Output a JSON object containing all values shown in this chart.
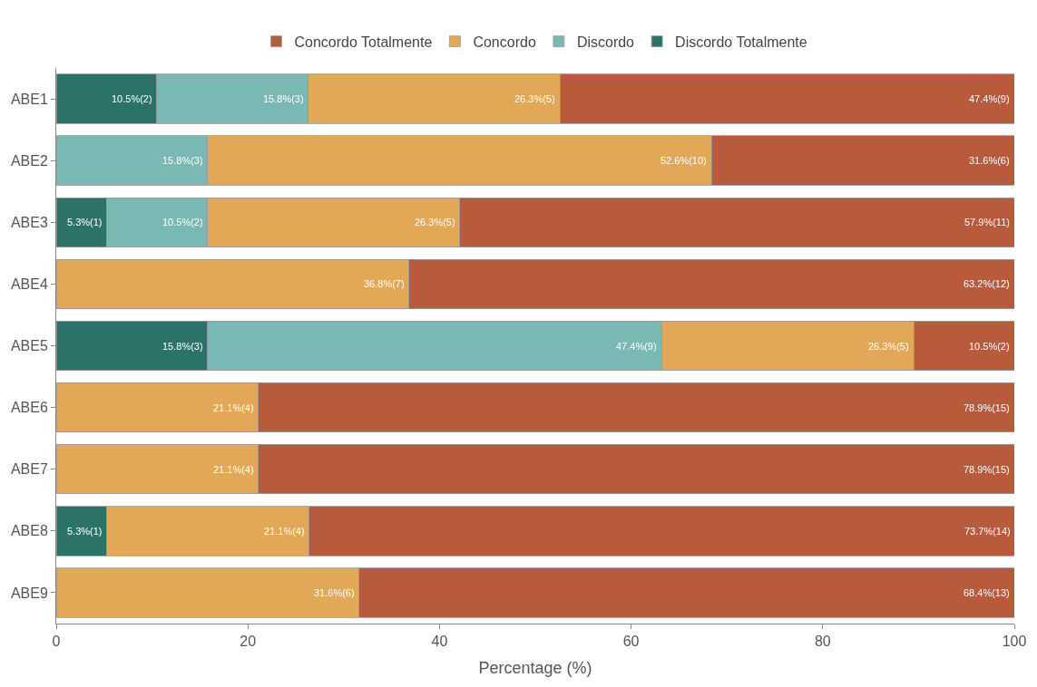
{
  "chart_data": {
    "type": "bar",
    "orientation": "horizontal",
    "stacked": true,
    "xlabel": "Percentage (%)",
    "xlim": [
      0,
      100
    ],
    "xticks": [
      0,
      20,
      40,
      60,
      80,
      100
    ],
    "legend": "top",
    "categories": [
      "ABE1",
      "ABE2",
      "ABE3",
      "ABE4",
      "ABE5",
      "ABE6",
      "ABE7",
      "ABE8",
      "ABE9"
    ],
    "series": [
      {
        "name": "Discordo Totalmente",
        "color": "#2b7369",
        "values": [
          10.5,
          null,
          5.3,
          null,
          15.8,
          null,
          null,
          5.3,
          null
        ],
        "value_labels": [
          "10.5%(2)",
          null,
          "5.3%(1)",
          null,
          "15.8%(3)",
          null,
          null,
          "5.3%(1)",
          null
        ]
      },
      {
        "name": "Discordo",
        "color": "#7ab8b3",
        "values": [
          15.8,
          15.8,
          10.5,
          null,
          47.4,
          null,
          null,
          null,
          null
        ],
        "value_labels": [
          "15.8%(3)",
          "15.8%(3)",
          "10.5%(2)",
          null,
          "47.4%(9)",
          null,
          null,
          null,
          null
        ]
      },
      {
        "name": "Concordo",
        "color": "#e2a857",
        "values": [
          26.3,
          52.6,
          26.3,
          36.8,
          26.3,
          21.1,
          21.1,
          21.1,
          31.6
        ],
        "value_labels": [
          "26.3%(5)",
          "52.6%(10)",
          "26.3%(5)",
          "36.8%(7)",
          "26.3%(5)",
          "21.1%(4)",
          "21.1%(4)",
          "21.1%(4)",
          "31.6%(6)"
        ]
      },
      {
        "name": "Concordo Totalmente",
        "color": "#b85a3c",
        "values": [
          47.4,
          31.6,
          57.9,
          63.2,
          10.5,
          78.9,
          78.9,
          73.7,
          68.4
        ],
        "value_labels": [
          "47.4%(9)",
          "31.6%(6)",
          "57.9%(11)",
          "63.2%(12)",
          "10.5%(2)",
          "78.9%(15)",
          "78.9%(15)",
          "73.7%(14)",
          "68.4%(13)"
        ]
      }
    ]
  }
}
